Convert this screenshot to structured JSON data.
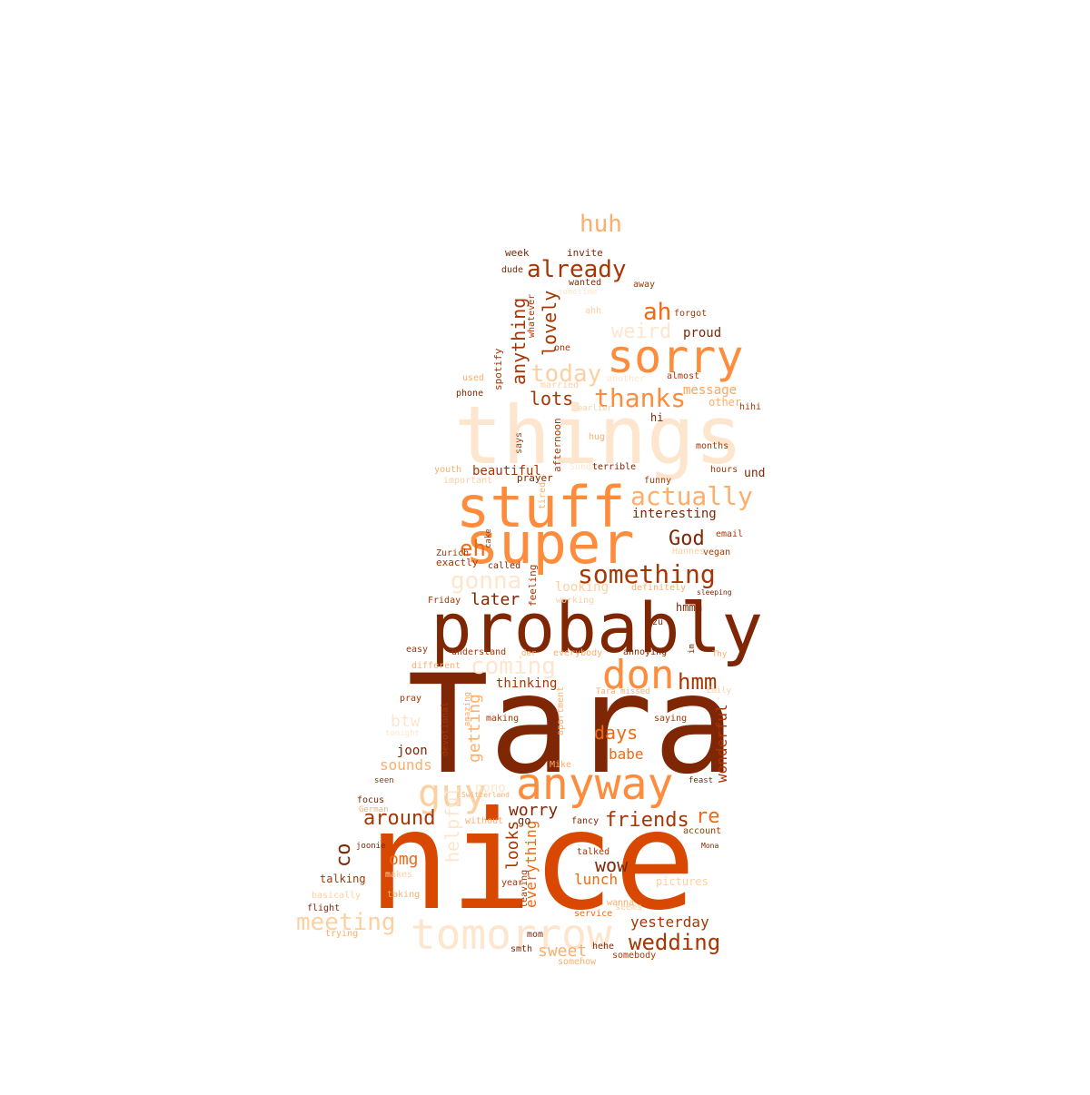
{
  "palette": {
    "darkest": "#7f2704",
    "dark": "#a63603",
    "deep": "#d94801",
    "mid": "#f16913",
    "light": "#fd8d3c",
    "pale": "#fdae6b",
    "paler": "#fdd0a2",
    "palest": "#fee6ce"
  },
  "words": [
    {
      "text": "Tara",
      "color": "darkest"
    },
    {
      "text": "nice",
      "color": "deep"
    },
    {
      "text": "things",
      "color": "palest"
    },
    {
      "text": "probably",
      "color": "darkest"
    },
    {
      "text": "stuff",
      "color": "light"
    },
    {
      "text": "super",
      "color": "light"
    },
    {
      "text": "sorry",
      "color": "light"
    },
    {
      "text": "anyway",
      "color": "light"
    },
    {
      "text": "tomorrow",
      "color": "palest"
    },
    {
      "text": "don",
      "color": "light"
    },
    {
      "text": "guy",
      "color": "paler"
    },
    {
      "text": "something",
      "color": "dark"
    },
    {
      "text": "actually",
      "color": "pale"
    },
    {
      "text": "thanks",
      "color": "light"
    },
    {
      "text": "already",
      "color": "dark"
    },
    {
      "text": "today",
      "color": "paler"
    },
    {
      "text": "coming",
      "color": "palest"
    },
    {
      "text": "hmm",
      "color": "dark"
    },
    {
      "text": "meeting",
      "color": "paler"
    },
    {
      "text": "wedding",
      "color": "dark"
    },
    {
      "text": "friends",
      "color": "dark"
    },
    {
      "text": "around",
      "color": "dark"
    },
    {
      "text": "gonna",
      "color": "palest"
    },
    {
      "text": "lots",
      "color": "dark"
    },
    {
      "text": "huh",
      "color": "pale"
    },
    {
      "text": "ah",
      "color": "mid"
    },
    {
      "text": "weird",
      "color": "palest"
    },
    {
      "text": "lovely",
      "color": "dark"
    },
    {
      "text": "anything",
      "color": "dark"
    },
    {
      "text": "God",
      "color": "darkest"
    },
    {
      "text": "eh",
      "color": "mid"
    },
    {
      "text": "later",
      "color": "darkest"
    },
    {
      "text": "worry",
      "color": "darkest"
    },
    {
      "text": "omg",
      "color": "mid"
    },
    {
      "text": "wow",
      "color": "darkest"
    },
    {
      "text": "sweet",
      "color": "pale"
    },
    {
      "text": "lunch",
      "color": "mid"
    },
    {
      "text": "looks",
      "color": "dark"
    },
    {
      "text": "everything",
      "color": "mid"
    },
    {
      "text": "re",
      "color": "mid"
    },
    {
      "text": "co",
      "color": "darkest"
    },
    {
      "text": "yesterday",
      "color": "dark"
    },
    {
      "text": "days",
      "color": "mid"
    },
    {
      "text": "babe",
      "color": "mid"
    },
    {
      "text": "getting",
      "color": "pale"
    },
    {
      "text": "wonderful",
      "color": "dark"
    },
    {
      "text": "helpful",
      "color": "palest"
    },
    {
      "text": "sounds",
      "color": "pale"
    },
    {
      "text": "btw",
      "color": "palest"
    },
    {
      "text": "beautiful",
      "color": "dark"
    },
    {
      "text": "interesting",
      "color": "darkest"
    },
    {
      "text": "thinking",
      "color": "dark"
    },
    {
      "text": "message",
      "color": "pale"
    },
    {
      "text": "proud",
      "color": "darkest"
    },
    {
      "text": "message",
      "color": "pale"
    },
    {
      "text": "joon",
      "color": "darkest"
    },
    {
      "text": "talking",
      "color": "dark"
    },
    {
      "text": "pictures",
      "color": "paler"
    },
    {
      "text": "nono",
      "color": "palest"
    },
    {
      "text": "looking",
      "color": "paler"
    },
    {
      "text": "und",
      "color": "darkest"
    },
    {
      "text": "hi",
      "color": "darkest"
    },
    {
      "text": "hmmm",
      "color": "darkest"
    },
    {
      "text": "week",
      "color": "darkest"
    },
    {
      "text": "invite",
      "color": "darkest"
    },
    {
      "text": "dude",
      "color": "darkest"
    },
    {
      "text": "wanted",
      "color": "darkest"
    },
    {
      "text": "away",
      "color": "dark"
    },
    {
      "text": "forgot",
      "color": "dark"
    },
    {
      "text": "almost",
      "color": "dark"
    },
    {
      "text": "other",
      "color": "pale"
    },
    {
      "text": "hihi",
      "color": "dark"
    },
    {
      "text": "months",
      "color": "dark"
    },
    {
      "text": "hours",
      "color": "dark"
    },
    {
      "text": "phone",
      "color": "darkest"
    },
    {
      "text": "spotify",
      "color": "dark"
    },
    {
      "text": "one",
      "color": "dark"
    },
    {
      "text": "whatever",
      "color": "dark"
    },
    {
      "text": "afternoon",
      "color": "dark"
    },
    {
      "text": "says",
      "color": "dark"
    },
    {
      "text": "prayer",
      "color": "darkest"
    },
    {
      "text": "Sunday",
      "color": "palest"
    },
    {
      "text": "terrible",
      "color": "darkest"
    },
    {
      "text": "funny",
      "color": "dark"
    },
    {
      "text": "email",
      "color": "dark"
    },
    {
      "text": "vegan",
      "color": "dark"
    },
    {
      "text": "Hannes",
      "color": "paler"
    },
    {
      "text": "Zurich",
      "color": "dark"
    },
    {
      "text": "exactly",
      "color": "dark"
    },
    {
      "text": "called",
      "color": "darkest"
    },
    {
      "text": "definitely",
      "color": "pale"
    },
    {
      "text": "sleeping",
      "color": "darkest"
    },
    {
      "text": "feeling",
      "color": "dark"
    },
    {
      "text": "Friday",
      "color": "dark"
    },
    {
      "text": "working",
      "color": "paler"
    },
    {
      "text": "zu",
      "color": "darkest"
    },
    {
      "text": "easy",
      "color": "dark"
    },
    {
      "text": "understand",
      "color": "dark"
    },
    {
      "text": "der",
      "color": "pale"
    },
    {
      "text": "everybody",
      "color": "pale"
    },
    {
      "text": "annoying",
      "color": "darkest"
    },
    {
      "text": "im",
      "color": "darkest"
    },
    {
      "text": "Thy",
      "color": "pale"
    },
    {
      "text": "different",
      "color": "pale"
    },
    {
      "text": "Emily",
      "color": "paler"
    },
    {
      "text": "pray",
      "color": "dark"
    },
    {
      "text": "Tara missed",
      "color": "pale"
    },
    {
      "text": "saying",
      "color": "dark"
    },
    {
      "text": "making",
      "color": "dark"
    },
    {
      "text": "tonight",
      "color": "palest"
    },
    {
      "text": "devotional",
      "color": "dark"
    },
    {
      "text": "apartment",
      "color": "pale"
    },
    {
      "text": "Mike",
      "color": "pale"
    },
    {
      "text": "seen",
      "color": "dark"
    },
    {
      "text": "focus",
      "color": "darkest"
    },
    {
      "text": "German",
      "color": "pale"
    },
    {
      "text": "Switzerland",
      "color": "pale"
    },
    {
      "text": "without",
      "color": "pale"
    },
    {
      "text": "go",
      "color": "darkest"
    },
    {
      "text": "fancy",
      "color": "darkest"
    },
    {
      "text": "account",
      "color": "dark"
    },
    {
      "text": "feast",
      "color": "darkest"
    },
    {
      "text": "talked",
      "color": "dark"
    },
    {
      "text": "Mona",
      "color": "darkest"
    },
    {
      "text": "joonie",
      "color": "darkest"
    },
    {
      "text": "makes",
      "color": "paler"
    },
    {
      "text": "taking",
      "color": "pale"
    },
    {
      "text": "basically",
      "color": "paler"
    },
    {
      "text": "flight",
      "color": "darkest"
    },
    {
      "text": "trying",
      "color": "pale"
    },
    {
      "text": "year",
      "color": "dark"
    },
    {
      "text": "service",
      "color": "mid"
    },
    {
      "text": "wanna",
      "color": "pale"
    },
    {
      "text": "seems",
      "color": "paler"
    },
    {
      "text": "mom",
      "color": "darkest"
    },
    {
      "text": "smth",
      "color": "darkest"
    },
    {
      "text": "hehe",
      "color": "darkest"
    },
    {
      "text": "somebody",
      "color": "dark"
    },
    {
      "text": "somehow",
      "color": "pale"
    },
    {
      "text": "hug",
      "color": "pale"
    },
    {
      "text": "youth",
      "color": "pale"
    },
    {
      "text": "important",
      "color": "paler"
    },
    {
      "text": "used",
      "color": "pale"
    },
    {
      "text": "married",
      "color": "paler"
    },
    {
      "text": "another",
      "color": "palest"
    },
    {
      "text": "earlier",
      "color": "paler"
    },
    {
      "text": "ahh",
      "color": "paler"
    },
    {
      "text": "sometime",
      "color": "palest"
    },
    {
      "text": "leaving",
      "color": "dark"
    },
    {
      "text": "cake",
      "color": "dark"
    },
    {
      "text": "tired",
      "color": "pale"
    },
    {
      "text": "amazing",
      "color": "pale"
    }
  ]
}
